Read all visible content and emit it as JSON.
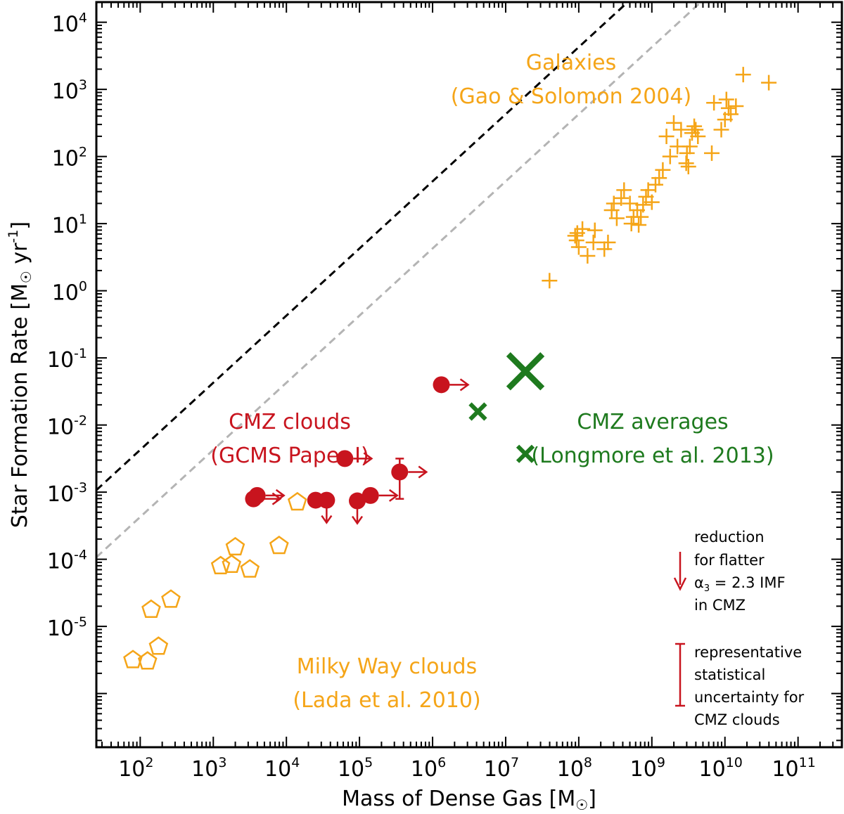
{
  "chart_data": {
    "type": "scatter",
    "scale": "log-log",
    "xlabel": "Mass of Dense Gas  [M☉]",
    "ylabel": "Star Formation Rate  [M☉ yr-1]",
    "xlabel_parts": {
      "main": "Mass of Dense Gas  [M",
      "unit": "☉",
      "close": "]"
    },
    "ylabel_parts": {
      "main": "Star Formation Rate  [M",
      "unit": "☉",
      "mid": " yr",
      "exp": "-1",
      "close": "]"
    },
    "xlim_log10": [
      1.4,
      11.6
    ],
    "ylim_log10": [
      -6.8,
      4.3
    ],
    "x_ticks": [
      {
        "base": "10",
        "exp": "2",
        "log": 2
      },
      {
        "base": "10",
        "exp": "3",
        "log": 3
      },
      {
        "base": "10",
        "exp": "4",
        "log": 4
      },
      {
        "base": "10",
        "exp": "5",
        "log": 5
      },
      {
        "base": "10",
        "exp": "6",
        "log": 6
      },
      {
        "base": "10",
        "exp": "7",
        "log": 7
      },
      {
        "base": "10",
        "exp": "8",
        "log": 8
      },
      {
        "base": "10",
        "exp": "9",
        "log": 9
      },
      {
        "base": "10",
        "exp": "10",
        "log": 10
      },
      {
        "base": "10",
        "exp": "11",
        "log": 11
      }
    ],
    "y_ticks": [
      {
        "base": "10",
        "exp": "4",
        "log": 4
      },
      {
        "base": "10",
        "exp": "3",
        "log": 3
      },
      {
        "base": "10",
        "exp": "2",
        "log": 2
      },
      {
        "base": "10",
        "exp": "1",
        "log": 1
      },
      {
        "base": "10",
        "exp": "0",
        "log": 0
      },
      {
        "base": "10",
        "exp": "-1",
        "log": -1
      },
      {
        "base": "10",
        "exp": "-2",
        "log": -2
      },
      {
        "base": "10",
        "exp": "-3",
        "log": -3
      },
      {
        "base": "10",
        "exp": "-4",
        "log": -4
      },
      {
        "base": "10",
        "exp": "-5",
        "log": -5
      }
    ],
    "lines": [
      {
        "name": "linear relation",
        "color": "#000000",
        "dash": true,
        "log_offset": -4.37
      },
      {
        "name": "lower relation",
        "color": "#b4b4b4",
        "dash": true,
        "log_offset": -5.37
      }
    ],
    "series": [
      {
        "name": "Galaxies (Gao & Solomon 2004)",
        "marker": "plus",
        "color": "#f5a518",
        "points": [
          [
            7.6,
            0.15
          ],
          [
            7.95,
            0.82
          ],
          [
            7.97,
            0.75
          ],
          [
            7.98,
            0.86
          ],
          [
            8.05,
            0.92
          ],
          [
            8.0,
            0.65
          ],
          [
            8.12,
            0.52
          ],
          [
            8.2,
            0.72
          ],
          [
            8.22,
            0.9
          ],
          [
            8.35,
            0.62
          ],
          [
            8.4,
            0.72
          ],
          [
            8.45,
            1.2
          ],
          [
            8.48,
            1.3
          ],
          [
            8.52,
            1.08
          ],
          [
            8.58,
            1.38
          ],
          [
            8.62,
            1.5
          ],
          [
            8.7,
            1.3
          ],
          [
            8.72,
            1.0
          ],
          [
            8.75,
            1.1
          ],
          [
            8.8,
            1.2
          ],
          [
            8.82,
            0.98
          ],
          [
            8.85,
            1.1
          ],
          [
            8.88,
            1.28
          ],
          [
            8.92,
            1.4
          ],
          [
            8.95,
            1.5
          ],
          [
            9.0,
            1.32
          ],
          [
            9.05,
            1.58
          ],
          [
            9.1,
            1.68
          ],
          [
            9.15,
            1.8
          ],
          [
            9.2,
            2.3
          ],
          [
            9.25,
            2.0
          ],
          [
            9.3,
            2.5
          ],
          [
            9.35,
            2.15
          ],
          [
            9.4,
            2.4
          ],
          [
            9.47,
            1.9
          ],
          [
            9.48,
            2.05
          ],
          [
            9.5,
            1.85
          ],
          [
            9.52,
            2.15
          ],
          [
            9.55,
            2.35
          ],
          [
            9.58,
            2.45
          ],
          [
            9.6,
            2.4
          ],
          [
            9.63,
            2.3
          ],
          [
            9.82,
            2.05
          ],
          [
            9.85,
            2.8
          ],
          [
            9.95,
            2.4
          ],
          [
            10.0,
            2.55
          ],
          [
            10.02,
            2.85
          ],
          [
            10.05,
            2.72
          ],
          [
            10.08,
            2.63
          ],
          [
            10.15,
            2.75
          ],
          [
            10.25,
            3.22
          ],
          [
            10.6,
            3.1
          ]
        ]
      },
      {
        "name": "CMZ clouds (GCMS Paper I)",
        "marker": "filled-circle",
        "color": "#c8141e",
        "points": [
          [
            3.55,
            -3.1
          ],
          [
            3.6,
            -3.05
          ],
          [
            4.4,
            -3.12
          ],
          [
            4.55,
            -3.12
          ],
          [
            4.8,
            -2.5
          ],
          [
            4.97,
            -3.13
          ],
          [
            5.15,
            -3.05
          ],
          [
            5.55,
            -2.7
          ],
          [
            6.12,
            -1.4
          ]
        ],
        "arrows_right_on": [
          0,
          1,
          4,
          6,
          7,
          8
        ],
        "arrows_down_on": [
          3,
          5
        ],
        "errorbar_on": 7,
        "errorbar_log_range": [
          -3.1,
          -2.5
        ]
      },
      {
        "name": "Milky Way clouds (Lada et al. 2010)",
        "marker": "open-pentagon",
        "color": "#f5a518",
        "points": [
          [
            1.9,
            -5.5
          ],
          [
            2.1,
            -5.52
          ],
          [
            2.25,
            -5.3
          ],
          [
            2.15,
            -4.75
          ],
          [
            2.42,
            -4.6
          ],
          [
            3.1,
            -4.1
          ],
          [
            3.25,
            -4.08
          ],
          [
            3.3,
            -3.82
          ],
          [
            3.5,
            -4.15
          ],
          [
            3.9,
            -3.8
          ],
          [
            4.15,
            -3.15
          ]
        ]
      },
      {
        "name": "CMZ averages (Longmore et al. 2013)",
        "marker": "cross",
        "color": "#1e7a1e",
        "points": [
          [
            6.62,
            -1.8
          ],
          [
            7.27,
            -1.2
          ],
          [
            7.27,
            -2.43
          ]
        ],
        "sizes": [
          1,
          2.2,
          1
        ]
      }
    ],
    "annotations": [
      {
        "id": "galaxies",
        "line1": "Galaxies",
        "line2": "(Gao & Solomon 2004)",
        "color": "#f5a518"
      },
      {
        "id": "cmz_clouds",
        "line1": "CMZ clouds",
        "line2": "(GCMS Paper I)",
        "color": "#c8141e"
      },
      {
        "id": "cmz_avg",
        "line1": "CMZ averages",
        "line2": "(Longmore et al. 2013)",
        "color": "#1e7a1e"
      },
      {
        "id": "mw_clouds",
        "line1": "Milky Way  clouds",
        "line2": "(Lada et al. 2010)",
        "color": "#f5a518"
      }
    ],
    "notes": {
      "imf": {
        "line1": "reduction",
        "line2": "for flatter",
        "alpha": "α",
        "alpha_sub": "3",
        "alpha_rest": " = 2.3 IMF",
        "line4": "in CMZ",
        "color": "#c8141e"
      },
      "uncertainty": {
        "lines": [
          "representative",
          "statistical",
          "uncertainty for",
          "CMZ clouds"
        ],
        "color": "#c8141e"
      }
    }
  }
}
